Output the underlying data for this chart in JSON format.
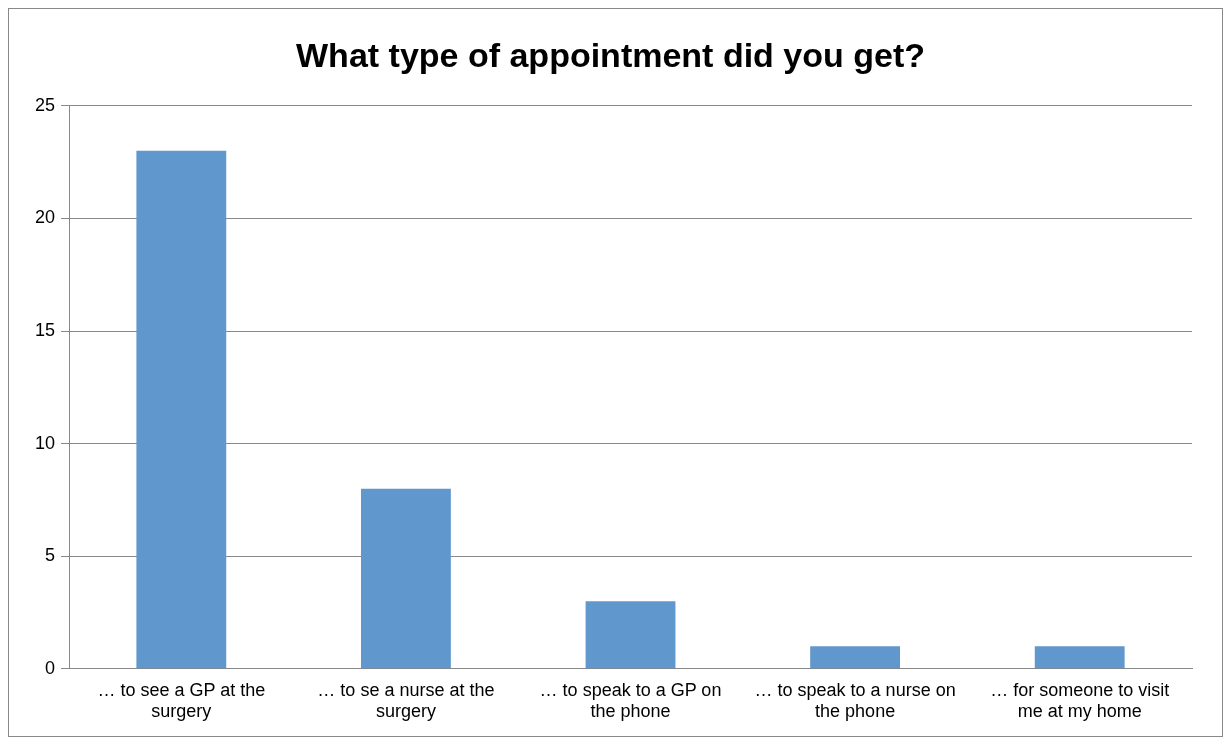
{
  "chart_data": {
    "type": "bar",
    "title": "What type of appointment did you get?",
    "categories": [
      "… to see a GP at the surgery",
      "… to se a nurse at the surgery",
      "… to speak to a GP on the phone",
      "… to speak to a nurse on the phone",
      "… for someone to visit me at my home"
    ],
    "values": [
      23,
      8,
      3,
      1,
      1
    ],
    "color": "#6097cc",
    "ylim": [
      0,
      25
    ],
    "yticks": [
      0,
      5,
      10,
      15,
      20,
      25
    ],
    "grid": "y",
    "legend": false
  }
}
